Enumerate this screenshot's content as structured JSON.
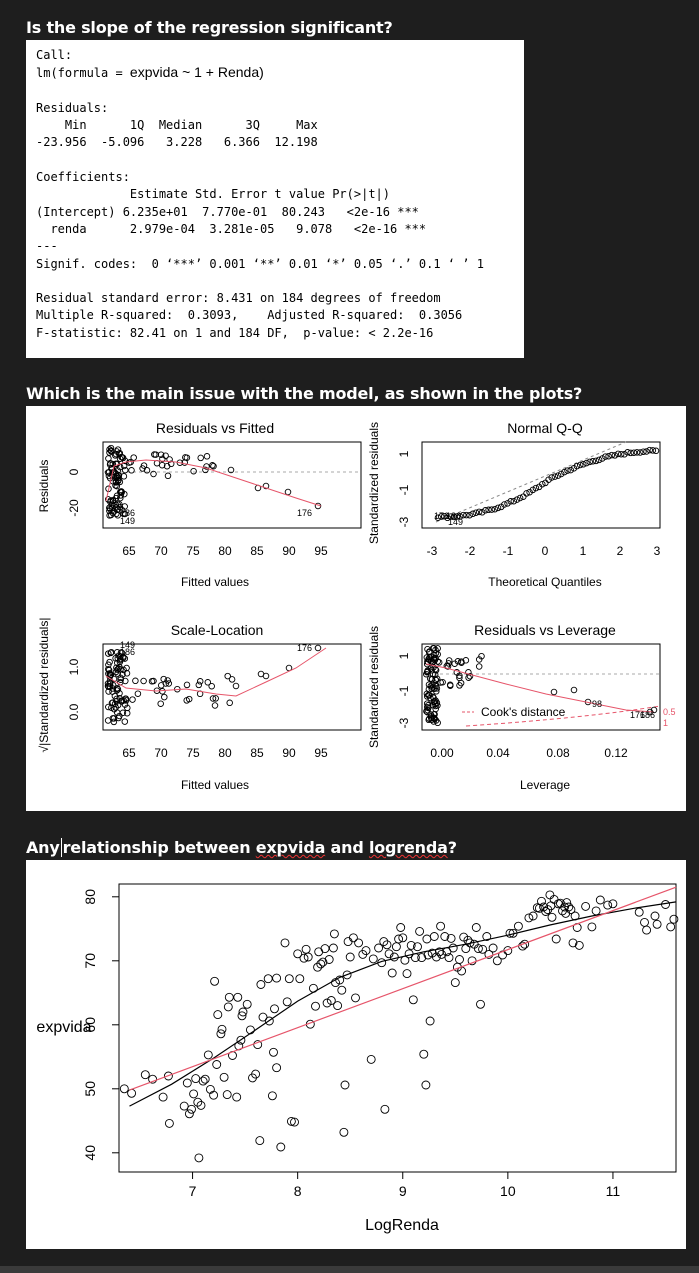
{
  "headings": {
    "q1": "Is the slope of the regression significant?",
    "q2": "Which is the main issue with the model, as shown in the  plots?",
    "q3_prefix": "Any",
    "q3_mid": "relationship between ",
    "q3_word1": "expvida",
    "q3_and": " and ",
    "q3_word2": "logrenda",
    "q3_suffix": "?"
  },
  "r_output": {
    "call_label": "Call:",
    "formula_prefix": "lm(formula = ",
    "formula": "expvida ~ 1 + Renda)",
    "residuals_label": "Residuals:",
    "residual_header": "    Min      1Q  Median      3Q     Max ",
    "residual_values": "-23.956  -5.096   3.228   6.366  12.198 ",
    "coefficients_label": "Coefficients:",
    "coef_header": "             Estimate Std. Error t value Pr(>|t|)    ",
    "coef_row1": "(Intercept) 6.235e+01  7.770e-01  80.243   <2e-16 ***",
    "coef_row2_name": "  renda",
    "coef_row2_values": "      2.979e-04  3.281e-05   9.078   <2e-16 ***",
    "separator": "---",
    "signif": "Signif. codes:  0 ‘***’ 0.001 ‘**’ 0.01 ‘*’ 0.05 ‘.’ 0.1 ‘ ’ 1",
    "rse": "Residual standard error: 8.431 on 184 degrees of freedom",
    "rsq": "Multiple R-squared:  0.3093,    Adjusted R-squared:  0.3056 ",
    "fstat": "F-statistic: 82.41 on 1 and 184 DF,  p-value: < 2.2e-16"
  },
  "diagnostics": {
    "rvf": {
      "title": "Residuals vs Fitted",
      "xlabel": "Fitted values",
      "ylabel": "Residuals",
      "xticks": [
        "65",
        "70",
        "75",
        "80",
        "85",
        "90",
        "95"
      ],
      "yticks": [
        "0",
        "-20"
      ],
      "labels": [
        "176",
        "186",
        "149"
      ]
    },
    "qq": {
      "title": "Normal Q-Q",
      "xlabel": "Theoretical Quantiles",
      "ylabel": "Standardized residuals",
      "xticks": [
        "-3",
        "-2",
        "-1",
        "0",
        "1",
        "2",
        "3"
      ],
      "yticks": [
        "1",
        "-1",
        "-3"
      ],
      "labels": [
        "176",
        "186",
        "149"
      ]
    },
    "sl": {
      "title": "Scale-Location",
      "xlabel": "Fitted values",
      "ylabel": "√|Standardized residuals|",
      "xticks": [
        "65",
        "70",
        "75",
        "80",
        "85",
        "90",
        "95"
      ],
      "yticks": [
        "1.0",
        "0.0"
      ],
      "labels": [
        "176",
        "149",
        "186"
      ]
    },
    "rvl": {
      "title": "Residuals vs Leverage",
      "xlabel": "Leverage",
      "ylabel": "Standardized residuals",
      "xticks": [
        "0.00",
        "0.04",
        "0.08",
        "0.12"
      ],
      "yticks": [
        "1",
        "-1",
        "-3"
      ],
      "legend": "Cook's distance",
      "labels": [
        "98",
        "176",
        "186"
      ],
      "cook_levels": [
        "0.5",
        "1"
      ]
    }
  },
  "chart_data": {
    "type": "scatter",
    "xlabel": "LogRenda",
    "ylabel": "expvida",
    "xlim": [
      6.3,
      11.6
    ],
    "ylim": [
      37,
      82
    ],
    "xticks": [
      7,
      8,
      9,
      10,
      11
    ],
    "yticks": [
      40,
      50,
      60,
      70,
      80
    ],
    "points": [
      [
        6.35,
        50.0
      ],
      [
        6.42,
        49.3
      ],
      [
        6.55,
        52.2
      ],
      [
        6.62,
        51.5
      ],
      [
        6.72,
        48.7
      ],
      [
        6.77,
        52.0
      ],
      [
        6.78,
        44.6
      ],
      [
        6.92,
        47.3
      ],
      [
        6.95,
        50.9
      ],
      [
        6.97,
        46.1
      ],
      [
        6.99,
        46.8
      ],
      [
        7.01,
        49.2
      ],
      [
        7.03,
        51.6
      ],
      [
        7.06,
        39.2
      ],
      [
        7.05,
        47.9
      ],
      [
        7.12,
        51.5
      ],
      [
        7.08,
        47.4
      ],
      [
        7.15,
        55.3
      ],
      [
        7.17,
        49.9
      ],
      [
        7.1,
        51.2
      ],
      [
        7.2,
        49.0
      ],
      [
        7.21,
        66.8
      ],
      [
        7.23,
        53.8
      ],
      [
        7.24,
        61.6
      ],
      [
        7.27,
        58.6
      ],
      [
        7.28,
        59.3
      ],
      [
        7.3,
        51.8
      ],
      [
        7.33,
        49.1
      ],
      [
        7.34,
        62.8
      ],
      [
        7.35,
        64.3
      ],
      [
        7.38,
        55.2
      ],
      [
        7.42,
        48.7
      ],
      [
        7.43,
        64.3
      ],
      [
        7.44,
        56.7
      ],
      [
        7.46,
        57.6
      ],
      [
        7.47,
        61.4
      ],
      [
        7.48,
        62.0
      ],
      [
        7.52,
        63.2
      ],
      [
        7.55,
        59.2
      ],
      [
        7.57,
        51.7
      ],
      [
        7.6,
        52.3
      ],
      [
        7.62,
        56.9
      ],
      [
        7.64,
        41.9
      ],
      [
        7.65,
        66.3
      ],
      [
        7.67,
        61.2
      ],
      [
        7.72,
        67.2
      ],
      [
        7.73,
        60.6
      ],
      [
        7.76,
        48.9
      ],
      [
        7.77,
        55.7
      ],
      [
        7.78,
        62.5
      ],
      [
        7.8,
        53.3
      ],
      [
        7.8,
        67.3
      ],
      [
        7.84,
        40.9
      ],
      [
        7.88,
        72.8
      ],
      [
        7.9,
        63.6
      ],
      [
        7.92,
        67.2
      ],
      [
        7.94,
        44.9
      ],
      [
        7.97,
        44.8
      ],
      [
        8.0,
        71.1
      ],
      [
        8.02,
        67.2
      ],
      [
        8.06,
        70.4
      ],
      [
        8.08,
        71.8
      ],
      [
        8.1,
        70.6
      ],
      [
        8.12,
        60.1
      ],
      [
        8.15,
        65.7
      ],
      [
        8.17,
        62.9
      ],
      [
        8.19,
        69.0
      ],
      [
        8.2,
        71.4
      ],
      [
        8.22,
        69.5
      ],
      [
        8.24,
        69.8
      ],
      [
        8.26,
        71.9
      ],
      [
        8.28,
        63.4
      ],
      [
        8.3,
        70.2
      ],
      [
        8.32,
        63.8
      ],
      [
        8.34,
        72.0
      ],
      [
        8.35,
        74.2
      ],
      [
        8.36,
        66.6
      ],
      [
        8.38,
        63.0
      ],
      [
        8.4,
        67.0
      ],
      [
        8.42,
        65.4
      ],
      [
        8.44,
        43.2
      ],
      [
        8.45,
        50.6
      ],
      [
        8.47,
        67.8
      ],
      [
        8.48,
        73.0
      ],
      [
        8.5,
        70.6
      ],
      [
        8.53,
        73.6
      ],
      [
        8.55,
        64.2
      ],
      [
        8.58,
        72.8
      ],
      [
        8.62,
        71.0
      ],
      [
        8.65,
        71.6
      ],
      [
        8.7,
        54.6
      ],
      [
        8.72,
        70.3
      ],
      [
        8.77,
        72.0
      ],
      [
        8.8,
        69.7
      ],
      [
        8.82,
        73.0
      ],
      [
        8.83,
        46.8
      ],
      [
        8.85,
        72.5
      ],
      [
        8.87,
        71.1
      ],
      [
        8.9,
        68.1
      ],
      [
        8.92,
        70.6
      ],
      [
        8.94,
        72.2
      ],
      [
        8.96,
        73.4
      ],
      [
        8.98,
        75.2
      ],
      [
        9.0,
        73.6
      ],
      [
        9.02,
        70.1
      ],
      [
        9.04,
        68.0
      ],
      [
        9.06,
        71.1
      ],
      [
        9.08,
        72.4
      ],
      [
        9.1,
        63.9
      ],
      [
        9.12,
        70.5
      ],
      [
        9.14,
        72.2
      ],
      [
        9.16,
        74.6
      ],
      [
        9.18,
        70.5
      ],
      [
        9.2,
        55.4
      ],
      [
        9.22,
        50.6
      ],
      [
        9.23,
        73.4
      ],
      [
        9.24,
        70.9
      ],
      [
        9.26,
        60.6
      ],
      [
        9.28,
        71.2
      ],
      [
        9.3,
        73.8
      ],
      [
        9.32,
        70.6
      ],
      [
        9.35,
        71.4
      ],
      [
        9.36,
        75.4
      ],
      [
        9.37,
        71.0
      ],
      [
        9.4,
        73.8
      ],
      [
        9.42,
        71.4
      ],
      [
        9.44,
        70.5
      ],
      [
        9.46,
        73.5
      ],
      [
        9.48,
        72.0
      ],
      [
        9.5,
        66.6
      ],
      [
        9.52,
        69.0
      ],
      [
        9.54,
        70.2
      ],
      [
        9.56,
        68.4
      ],
      [
        9.58,
        73.7
      ],
      [
        9.6,
        71.9
      ],
      [
        9.62,
        73.2
      ],
      [
        9.64,
        72.8
      ],
      [
        9.66,
        70.0
      ],
      [
        9.68,
        72.6
      ],
      [
        9.7,
        75.2
      ],
      [
        9.72,
        71.9
      ],
      [
        9.74,
        63.2
      ],
      [
        9.76,
        71.8
      ],
      [
        9.8,
        73.8
      ],
      [
        9.82,
        71.0
      ],
      [
        9.86,
        72.0
      ],
      [
        9.9,
        70.0
      ],
      [
        9.95,
        70.9
      ],
      [
        10.0,
        71.6
      ],
      [
        10.02,
        74.3
      ],
      [
        10.05,
        74.3
      ],
      [
        10.1,
        75.4
      ],
      [
        10.14,
        72.3
      ],
      [
        10.16,
        72.6
      ],
      [
        10.2,
        76.7
      ],
      [
        10.24,
        77.0
      ],
      [
        10.28,
        78.3
      ],
      [
        10.3,
        78.2
      ],
      [
        10.32,
        79.3
      ],
      [
        10.34,
        78.4
      ],
      [
        10.36,
        77.7
      ],
      [
        10.38,
        78.0
      ],
      [
        10.4,
        80.3
      ],
      [
        10.41,
        78.6
      ],
      [
        10.42,
        76.8
      ],
      [
        10.44,
        79.6
      ],
      [
        10.46,
        73.4
      ],
      [
        10.48,
        78.9
      ],
      [
        10.5,
        79.0
      ],
      [
        10.52,
        77.8
      ],
      [
        10.54,
        78.4
      ],
      [
        10.55,
        77.4
      ],
      [
        10.56,
        79.1
      ],
      [
        10.58,
        78.4
      ],
      [
        10.6,
        78.0
      ],
      [
        10.62,
        72.8
      ],
      [
        10.64,
        77.0
      ],
      [
        10.66,
        75.2
      ],
      [
        10.68,
        72.4
      ],
      [
        10.74,
        78.5
      ],
      [
        10.8,
        75.3
      ],
      [
        10.84,
        77.8
      ],
      [
        10.88,
        79.5
      ],
      [
        10.95,
        78.7
      ],
      [
        11.0,
        78.9
      ],
      [
        11.25,
        77.6
      ],
      [
        11.3,
        76.0
      ],
      [
        11.32,
        74.8
      ],
      [
        11.4,
        77.0
      ],
      [
        11.42,
        75.7
      ],
      [
        11.5,
        78.8
      ],
      [
        11.55,
        75.3
      ],
      [
        11.58,
        76.5
      ]
    ],
    "lowess": [
      [
        6.4,
        47.3
      ],
      [
        6.8,
        50.7
      ],
      [
        7.2,
        54.8
      ],
      [
        7.6,
        59.2
      ],
      [
        8.0,
        63.7
      ],
      [
        8.4,
        67.4
      ],
      [
        8.8,
        69.9
      ],
      [
        9.2,
        71.4
      ],
      [
        9.6,
        72.6
      ],
      [
        10.0,
        74.0
      ],
      [
        10.4,
        75.6
      ],
      [
        10.8,
        77.0
      ],
      [
        11.2,
        78.2
      ],
      [
        11.6,
        79.2
      ]
    ],
    "fit": [
      [
        6.4,
        49.8
      ],
      [
        11.6,
        81.5
      ]
    ],
    "colors": {
      "points": "#000000",
      "lowess": "#000000",
      "fit": "#e6556a"
    }
  }
}
